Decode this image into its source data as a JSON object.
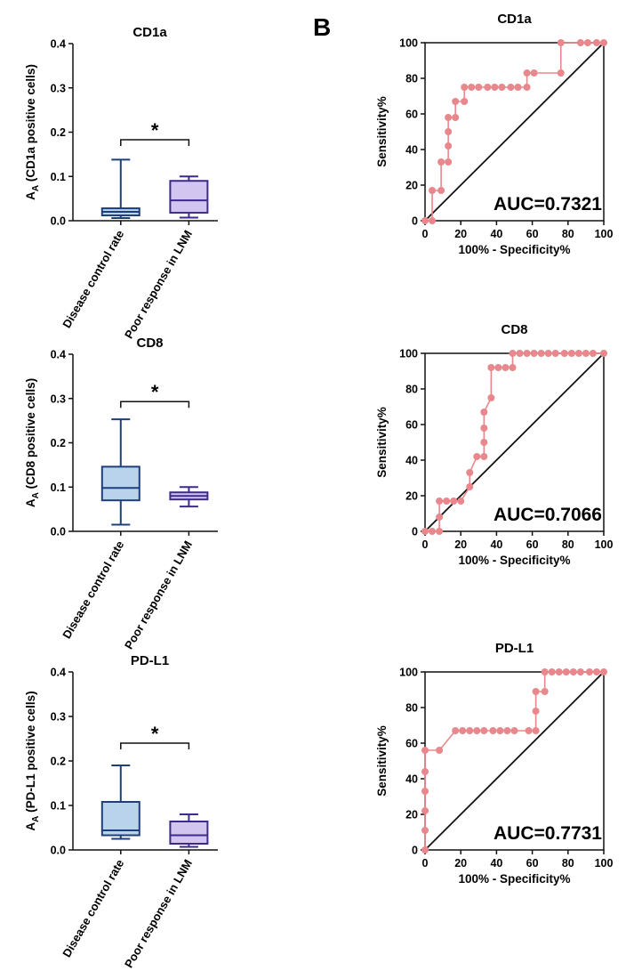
{
  "panel_label": "B",
  "chart_data": [
    {
      "type": "box",
      "title": "CD1a",
      "ylabel": "A_A (CD1a positive cells)",
      "ylabel_main": "A",
      "ylabel_sub": "A",
      "ylabel_rest": " (CD1a positive cells)",
      "ylim": [
        0,
        0.4
      ],
      "yticks": [
        "0.0",
        "0.1",
        "0.2",
        "0.3",
        "0.4"
      ],
      "categories": [
        "Disease control rate",
        "Poor response in LNM"
      ],
      "boxes": [
        {
          "min": 0.006,
          "q1": 0.012,
          "median": 0.02,
          "q3": 0.028,
          "max": 0.138,
          "fill": "#b9d3ec",
          "stroke": "#1f3f7a"
        },
        {
          "min": 0.007,
          "q1": 0.018,
          "median": 0.046,
          "q3": 0.09,
          "max": 0.1,
          "fill": "#d2c6f0",
          "stroke": "#3e2a8c"
        }
      ],
      "significance": "*",
      "sig_y": 0.183
    },
    {
      "type": "box",
      "title": "CD8",
      "ylabel": "A_A (CD8 positive cells)",
      "ylabel_main": "A",
      "ylabel_sub": "A",
      "ylabel_rest": " (CD8 positive cells)",
      "ylim": [
        0,
        0.4
      ],
      "yticks": [
        "0.0",
        "0.1",
        "0.2",
        "0.3",
        "0.4"
      ],
      "categories": [
        "Disease control rate",
        "Poor response in LNM"
      ],
      "boxes": [
        {
          "min": 0.015,
          "q1": 0.07,
          "median": 0.098,
          "q3": 0.146,
          "max": 0.253,
          "fill": "#b9d3ec",
          "stroke": "#1f3f7a"
        },
        {
          "min": 0.056,
          "q1": 0.072,
          "median": 0.08,
          "q3": 0.088,
          "max": 0.1,
          "fill": "#d2c6f0",
          "stroke": "#3e2a8c"
        }
      ],
      "significance": "*",
      "sig_y": 0.293
    },
    {
      "type": "box",
      "title": "PD-L1",
      "ylabel": "A_A (PD-L1 positive cells)",
      "ylabel_main": "A",
      "ylabel_sub": "A",
      "ylabel_rest": " (PD-L1 positive cells)",
      "ylim": [
        0,
        0.4
      ],
      "yticks": [
        "0.0",
        "0.1",
        "0.2",
        "0.3",
        "0.4"
      ],
      "categories": [
        "Disease control rate",
        "Poor response in LNM"
      ],
      "boxes": [
        {
          "min": 0.025,
          "q1": 0.033,
          "median": 0.044,
          "q3": 0.108,
          "max": 0.19,
          "fill": "#b9d3ec",
          "stroke": "#1f3f7a"
        },
        {
          "min": 0.007,
          "q1": 0.014,
          "median": 0.033,
          "q3": 0.064,
          "max": 0.08,
          "fill": "#d2c6f0",
          "stroke": "#3e2a8c"
        }
      ],
      "significance": "*",
      "sig_y": 0.24
    },
    {
      "type": "line",
      "title": "CD1a",
      "xlabel": "100% - Specificity%",
      "ylabel": "Sensitivity%",
      "xlim": [
        0,
        100
      ],
      "ylim": [
        0,
        100
      ],
      "xticks": [
        "0",
        "20",
        "40",
        "60",
        "80",
        "100"
      ],
      "yticks": [
        "0",
        "20",
        "40",
        "60",
        "80",
        "100"
      ],
      "annotation": "AUC=0.7321",
      "series": [
        {
          "color": "#e8888c",
          "x": [
            0,
            4,
            4,
            9,
            9,
            13,
            13,
            13,
            13,
            17,
            17,
            22,
            22,
            26,
            30,
            35,
            39,
            43,
            48,
            52,
            57,
            57,
            61,
            76,
            76,
            87,
            91,
            96,
            100
          ],
          "y": [
            0,
            0,
            17,
            17,
            33,
            33,
            42,
            50,
            58,
            58,
            67,
            67,
            75,
            75,
            75,
            75,
            75,
            75,
            75,
            75,
            75,
            83,
            83,
            83,
            100,
            100,
            100,
            100,
            100
          ]
        },
        {
          "color": "#111111",
          "x": [
            0,
            100
          ],
          "y": [
            0,
            100
          ]
        }
      ]
    },
    {
      "type": "line",
      "title": "CD8",
      "xlabel": "100% - Specificity%",
      "ylabel": "Sensitivity%",
      "xlim": [
        0,
        100
      ],
      "ylim": [
        0,
        100
      ],
      "xticks": [
        "0",
        "20",
        "40",
        "60",
        "80",
        "100"
      ],
      "yticks": [
        "0",
        "20",
        "40",
        "60",
        "80",
        "100"
      ],
      "annotation": "AUC=0.7066",
      "series": [
        {
          "color": "#e8888c",
          "x": [
            0,
            4,
            8,
            8,
            8,
            12,
            16,
            20,
            25,
            25,
            29,
            33,
            33,
            33,
            33,
            37,
            37,
            41,
            45,
            49,
            49,
            53,
            57,
            61,
            65,
            69,
            73,
            78,
            82,
            86,
            90,
            94,
            100
          ],
          "y": [
            0,
            0,
            0,
            8,
            17,
            17,
            17,
            17,
            25,
            33,
            42,
            42,
            50,
            58,
            67,
            75,
            92,
            92,
            92,
            92,
            100,
            100,
            100,
            100,
            100,
            100,
            100,
            100,
            100,
            100,
            100,
            100,
            100
          ]
        },
        {
          "color": "#111111",
          "x": [
            0,
            100
          ],
          "y": [
            0,
            100
          ]
        }
      ]
    },
    {
      "type": "line",
      "title": "PD-L1",
      "xlabel": "100% - Specificity%",
      "ylabel": "Sensitivity%",
      "xlim": [
        0,
        100
      ],
      "ylim": [
        0,
        100
      ],
      "xticks": [
        "0",
        "20",
        "40",
        "60",
        "80",
        "100"
      ],
      "yticks": [
        "0",
        "20",
        "40",
        "60",
        "80",
        "100"
      ],
      "annotation": "AUC=0.7731",
      "series": [
        {
          "color": "#e8888c",
          "x": [
            0,
            0,
            0,
            0,
            0,
            0,
            8,
            17,
            21,
            25,
            29,
            33,
            38,
            42,
            46,
            50,
            58,
            62,
            62,
            62,
            67,
            67,
            71,
            75,
            79,
            83,
            87,
            92,
            96,
            100
          ],
          "y": [
            0,
            11,
            22,
            33,
            44,
            56,
            56,
            67,
            67,
            67,
            67,
            67,
            67,
            67,
            67,
            67,
            67,
            67,
            78,
            89,
            89,
            100,
            100,
            100,
            100,
            100,
            100,
            100,
            100,
            100
          ]
        },
        {
          "color": "#111111",
          "x": [
            0,
            100
          ],
          "y": [
            0,
            100
          ]
        }
      ]
    }
  ]
}
